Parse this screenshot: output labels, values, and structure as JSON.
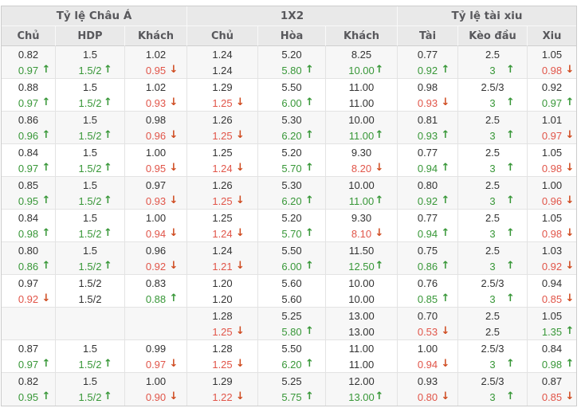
{
  "table": {
    "groups": [
      {
        "label": "Tỷ lệ Châu Á",
        "columns": [
          "Chủ",
          "HDP",
          "Khách"
        ]
      },
      {
        "label": "1X2",
        "columns": [
          "Chủ",
          "Hòa",
          "Khách"
        ]
      },
      {
        "label": "Tỷ lệ tài xiu",
        "columns": [
          "Tài",
          "Kèo đầu",
          "Xiu"
        ]
      }
    ],
    "colors": {
      "up": "#389738",
      "down": "#e15549",
      "arrow_up": "#389738",
      "arrow_down": "#cf4b20",
      "value": "#333333",
      "header_bg": "#e9e9e9",
      "header_text": "#58585c",
      "row_alt_bg": "#f7f7f7",
      "border": "#e3e3e3",
      "outer_border": "#cccccc"
    },
    "rows": [
      {
        "cells": [
          {
            "top": "0.82",
            "bottom": "0.97",
            "dir": "up"
          },
          {
            "top": "1.5",
            "bottom": "1.5/2",
            "dir": "up"
          },
          {
            "top": "1.02",
            "bottom": "0.95",
            "dir": "down"
          },
          {
            "top": "1.24",
            "bottom": "1.24",
            "dir": ""
          },
          {
            "top": "5.20",
            "bottom": "5.80",
            "dir": "up"
          },
          {
            "top": "8.25",
            "bottom": "10.00",
            "dir": "up"
          },
          {
            "top": "0.77",
            "bottom": "0.92",
            "dir": "up"
          },
          {
            "top": "2.5",
            "bottom": "3",
            "dir": "up"
          },
          {
            "top": "1.05",
            "bottom": "0.98",
            "dir": "down"
          }
        ]
      },
      {
        "cells": [
          {
            "top": "0.88",
            "bottom": "0.97",
            "dir": "up"
          },
          {
            "top": "1.5",
            "bottom": "1.5/2",
            "dir": "up"
          },
          {
            "top": "1.02",
            "bottom": "0.93",
            "dir": "down"
          },
          {
            "top": "1.29",
            "bottom": "1.25",
            "dir": "down"
          },
          {
            "top": "5.50",
            "bottom": "6.00",
            "dir": "up"
          },
          {
            "top": "11.00",
            "bottom": "11.00",
            "dir": ""
          },
          {
            "top": "0.98",
            "bottom": "0.93",
            "dir": "down"
          },
          {
            "top": "2.5/3",
            "bottom": "3",
            "dir": "up"
          },
          {
            "top": "0.92",
            "bottom": "0.97",
            "dir": "up"
          }
        ]
      },
      {
        "cells": [
          {
            "top": "0.86",
            "bottom": "0.96",
            "dir": "up"
          },
          {
            "top": "1.5",
            "bottom": "1.5/2",
            "dir": "up"
          },
          {
            "top": "0.98",
            "bottom": "0.96",
            "dir": "down"
          },
          {
            "top": "1.26",
            "bottom": "1.25",
            "dir": "down"
          },
          {
            "top": "5.30",
            "bottom": "6.20",
            "dir": "up"
          },
          {
            "top": "10.00",
            "bottom": "11.00",
            "dir": "up"
          },
          {
            "top": "0.81",
            "bottom": "0.93",
            "dir": "up"
          },
          {
            "top": "2.5",
            "bottom": "3",
            "dir": "up"
          },
          {
            "top": "1.01",
            "bottom": "0.97",
            "dir": "down"
          }
        ]
      },
      {
        "cells": [
          {
            "top": "0.84",
            "bottom": "0.97",
            "dir": "up"
          },
          {
            "top": "1.5",
            "bottom": "1.5/2",
            "dir": "up"
          },
          {
            "top": "1.00",
            "bottom": "0.95",
            "dir": "down"
          },
          {
            "top": "1.25",
            "bottom": "1.24",
            "dir": "down"
          },
          {
            "top": "5.20",
            "bottom": "5.70",
            "dir": "up"
          },
          {
            "top": "9.30",
            "bottom": "8.20",
            "dir": "down"
          },
          {
            "top": "0.77",
            "bottom": "0.94",
            "dir": "up"
          },
          {
            "top": "2.5",
            "bottom": "3",
            "dir": "up"
          },
          {
            "top": "1.05",
            "bottom": "0.98",
            "dir": "down"
          }
        ]
      },
      {
        "cells": [
          {
            "top": "0.85",
            "bottom": "0.95",
            "dir": "up"
          },
          {
            "top": "1.5",
            "bottom": "1.5/2",
            "dir": "up"
          },
          {
            "top": "0.97",
            "bottom": "0.93",
            "dir": "down"
          },
          {
            "top": "1.26",
            "bottom": "1.25",
            "dir": "down"
          },
          {
            "top": "5.30",
            "bottom": "6.20",
            "dir": "up"
          },
          {
            "top": "10.00",
            "bottom": "11.00",
            "dir": "up"
          },
          {
            "top": "0.80",
            "bottom": "0.92",
            "dir": "up"
          },
          {
            "top": "2.5",
            "bottom": "3",
            "dir": "up"
          },
          {
            "top": "1.00",
            "bottom": "0.96",
            "dir": "down"
          }
        ]
      },
      {
        "cells": [
          {
            "top": "0.84",
            "bottom": "0.98",
            "dir": "up"
          },
          {
            "top": "1.5",
            "bottom": "1.5/2",
            "dir": "up"
          },
          {
            "top": "1.00",
            "bottom": "0.94",
            "dir": "down"
          },
          {
            "top": "1.25",
            "bottom": "1.24",
            "dir": "down"
          },
          {
            "top": "5.20",
            "bottom": "5.70",
            "dir": "up"
          },
          {
            "top": "9.30",
            "bottom": "8.10",
            "dir": "down"
          },
          {
            "top": "0.77",
            "bottom": "0.94",
            "dir": "up"
          },
          {
            "top": "2.5",
            "bottom": "3",
            "dir": "up"
          },
          {
            "top": "1.05",
            "bottom": "0.98",
            "dir": "down"
          }
        ]
      },
      {
        "cells": [
          {
            "top": "0.80",
            "bottom": "0.86",
            "dir": "up"
          },
          {
            "top": "1.5",
            "bottom": "1.5/2",
            "dir": "up"
          },
          {
            "top": "0.96",
            "bottom": "0.92",
            "dir": "down"
          },
          {
            "top": "1.24",
            "bottom": "1.21",
            "dir": "down"
          },
          {
            "top": "5.50",
            "bottom": "6.00",
            "dir": "up"
          },
          {
            "top": "11.50",
            "bottom": "12.50",
            "dir": "up"
          },
          {
            "top": "0.75",
            "bottom": "0.86",
            "dir": "up"
          },
          {
            "top": "2.5",
            "bottom": "3",
            "dir": "up"
          },
          {
            "top": "1.03",
            "bottom": "0.92",
            "dir": "down"
          }
        ]
      },
      {
        "cells": [
          {
            "top": "0.97",
            "bottom": "0.92",
            "dir": "down"
          },
          {
            "top": "1.5/2",
            "bottom": "1.5/2",
            "dir": ""
          },
          {
            "top": "0.83",
            "bottom": "0.88",
            "dir": "up"
          },
          {
            "top": "1.20",
            "bottom": "1.20",
            "dir": ""
          },
          {
            "top": "5.60",
            "bottom": "5.60",
            "dir": ""
          },
          {
            "top": "10.00",
            "bottom": "10.00",
            "dir": ""
          },
          {
            "top": "0.76",
            "bottom": "0.85",
            "dir": "up"
          },
          {
            "top": "2.5/3",
            "bottom": "3",
            "dir": "up"
          },
          {
            "top": "0.94",
            "bottom": "0.85",
            "dir": "down"
          }
        ]
      },
      {
        "cells": [
          {
            "top": "",
            "bottom": "",
            "dir": ""
          },
          {
            "top": "",
            "bottom": "",
            "dir": ""
          },
          {
            "top": "",
            "bottom": "",
            "dir": ""
          },
          {
            "top": "1.28",
            "bottom": "1.25",
            "dir": "down"
          },
          {
            "top": "5.25",
            "bottom": "5.80",
            "dir": "up"
          },
          {
            "top": "13.00",
            "bottom": "13.00",
            "dir": ""
          },
          {
            "top": "0.70",
            "bottom": "0.53",
            "dir": "down"
          },
          {
            "top": "2.5",
            "bottom": "2.5",
            "dir": ""
          },
          {
            "top": "1.05",
            "bottom": "1.35",
            "dir": "up"
          }
        ]
      },
      {
        "cells": [
          {
            "top": "0.87",
            "bottom": "0.97",
            "dir": "up"
          },
          {
            "top": "1.5",
            "bottom": "1.5/2",
            "dir": "up"
          },
          {
            "top": "0.99",
            "bottom": "0.97",
            "dir": "down"
          },
          {
            "top": "1.28",
            "bottom": "1.25",
            "dir": "down"
          },
          {
            "top": "5.50",
            "bottom": "6.20",
            "dir": "up"
          },
          {
            "top": "11.00",
            "bottom": "11.00",
            "dir": ""
          },
          {
            "top": "1.00",
            "bottom": "0.94",
            "dir": "down"
          },
          {
            "top": "2.5/3",
            "bottom": "3",
            "dir": "up"
          },
          {
            "top": "0.84",
            "bottom": "0.98",
            "dir": "up"
          }
        ]
      },
      {
        "cells": [
          {
            "top": "0.82",
            "bottom": "0.95",
            "dir": "up"
          },
          {
            "top": "1.5",
            "bottom": "1.5/2",
            "dir": "up"
          },
          {
            "top": "1.00",
            "bottom": "0.90",
            "dir": "down"
          },
          {
            "top": "1.29",
            "bottom": "1.22",
            "dir": "down"
          },
          {
            "top": "5.25",
            "bottom": "5.75",
            "dir": "up"
          },
          {
            "top": "12.00",
            "bottom": "13.00",
            "dir": "up"
          },
          {
            "top": "0.93",
            "bottom": "0.80",
            "dir": "down"
          },
          {
            "top": "2.5/3",
            "bottom": "3",
            "dir": "up"
          },
          {
            "top": "0.87",
            "bottom": "0.85",
            "dir": "down"
          }
        ]
      }
    ]
  }
}
